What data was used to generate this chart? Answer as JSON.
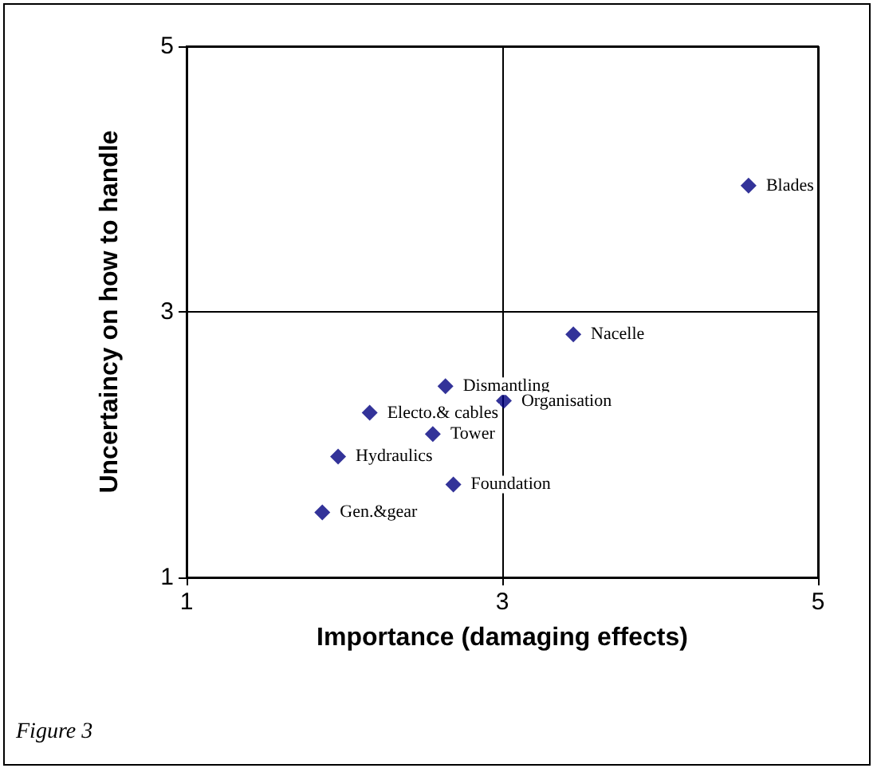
{
  "chart_data": {
    "type": "scatter",
    "xlabel": "Importance (damaging effects)",
    "ylabel": "Uncertaincy on how to handle",
    "x": [
      4.56,
      3.45,
      2.64,
      3.01,
      2.16,
      2.56,
      1.96,
      2.69,
      1.86
    ],
    "series": [
      {
        "color": "#000080",
        "values": [
          3.95,
          2.83,
          2.44,
          2.33,
          2.24,
          2.08,
          1.91,
          1.7,
          1.49
        ]
      }
    ],
    "annotations": [
      {
        "text": "Blades",
        "x": 4.56,
        "y": 3.95
      },
      {
        "text": "Nacelle",
        "x": 3.45,
        "y": 2.83
      },
      {
        "text": "Dismantling",
        "x": 2.64,
        "y": 2.44
      },
      {
        "text": "Organisation",
        "x": 3.01,
        "y": 2.33
      },
      {
        "text": "Electo.& cables",
        "x": 2.16,
        "y": 2.24
      },
      {
        "text": "Tower",
        "x": 2.56,
        "y": 2.08
      },
      {
        "text": "Hydraulics",
        "x": 1.96,
        "y": 1.91
      },
      {
        "text": "Foundation",
        "x": 2.69,
        "y": 1.7
      },
      {
        "text": "Gen.&gear",
        "x": 1.86,
        "y": 1.49
      },
      "Figure 3"
    ],
    "xlim": [
      1,
      5
    ],
    "ylim": [
      1,
      5
    ],
    "xticks": [
      1,
      3,
      5
    ],
    "yticks": [
      1,
      3,
      5
    ],
    "grid": true,
    "marker": "diamond"
  }
}
